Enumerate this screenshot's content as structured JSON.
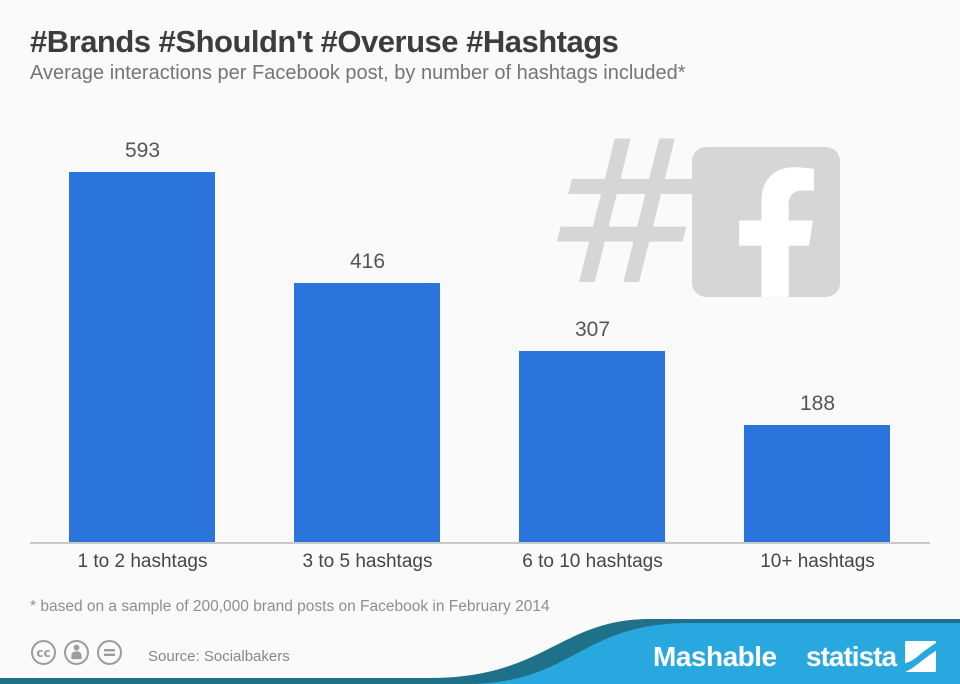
{
  "page": {
    "background": "#fafafa"
  },
  "header": {
    "title": "#Brands #Shouldn't #Overuse #Hashtags",
    "subtitle": "Average interactions per Facebook post, by number of hashtags included*"
  },
  "chart_data": {
    "type": "bar",
    "title": "#Brands #Shouldn't #Overuse #Hashtags",
    "subtitle": "Average interactions per Facebook post, by number of hashtags included*",
    "categories": [
      "1 to 2 hashtags",
      "3 to 5 hashtags",
      "6 to 10 hashtags",
      "10+ hashtags"
    ],
    "values": [
      593,
      416,
      307,
      188
    ],
    "xlabel": "",
    "ylabel": "",
    "ylim": [
      0,
      650
    ],
    "grid": false,
    "legend": false,
    "bar_color": "#2b74db",
    "value_label_color": "#565656",
    "axis_color": "#c9c9c9"
  },
  "watermark": {
    "hash_glyph": "#",
    "color": "#d6d6d6",
    "icons": [
      "hashtag-watermark",
      "facebook-watermark-icon"
    ]
  },
  "footnote": "* based on a sample of 200,000 brand posts on Facebook in February 2014",
  "footer": {
    "source": "Source: Socialbakers",
    "license_icons": [
      "cc-icon",
      "attribution-person-icon",
      "equals-icon"
    ],
    "mashable_logo": "Mashable",
    "statista_logo": "statista",
    "band_color": "#29a8e0",
    "wave_color": "#1e7189",
    "icon_color": "#9d9d9d"
  }
}
